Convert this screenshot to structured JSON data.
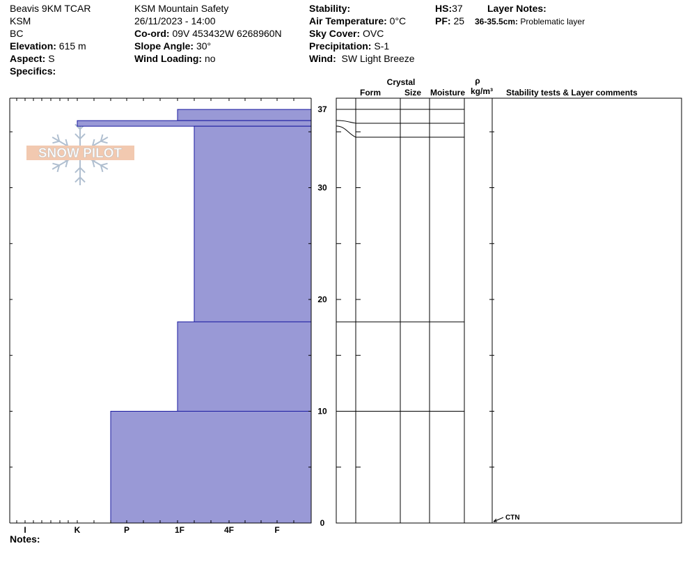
{
  "header": {
    "location": "Beavis 9KM TCAR",
    "range": "KSM",
    "state": "BC",
    "elevation_label": "Elevation:",
    "elevation_value": "615 m",
    "aspect_label": "Aspect:",
    "aspect_value": "S",
    "specifics_label": "Specifics:",
    "observer": "KSM Mountain Safety",
    "datetime": "26/11/2023 - 14:00",
    "coord_label": "Co-ord:",
    "coord_value": "09V 453432W 6268960N",
    "slope_label": "Slope Angle:",
    "slope_value": "30°",
    "windload_label": "Wind Loading:",
    "windload_value": "no",
    "stability_label": "Stability:",
    "stability_value": "",
    "airtemp_label": "Air Temperature:",
    "airtemp_value": "0°C",
    "sky_label": "Sky Cover:",
    "sky_value": "OVC",
    "precip_label": "Precipitation:",
    "precip_value": "S-1",
    "wind_label": "Wind:",
    "wind_value": "SW Light Breeze",
    "hs_label": "HS:",
    "hs_value": "37",
    "pf_label": "PF:",
    "pf_value": "25",
    "layer_notes_label": "Layer Notes:",
    "layer_note_range": "36-35.5cm:",
    "layer_note_text": "Problematic layer",
    "notes_label": "Notes:"
  },
  "logo": {
    "text": "SNOW PILOT"
  },
  "columns": {
    "crystal": "Crystal",
    "form": "Form",
    "size": "Size",
    "moisture": "Moisture",
    "rho": "ρ",
    "density_unit": "kg/m³",
    "comments": "Stability tests & Layer comments"
  },
  "tests": [
    {
      "label": "CTN",
      "height_cm": 0
    }
  ],
  "colors": {
    "fill": "#9999d6",
    "line": "#1a1aa0",
    "frame": "#000000"
  },
  "chart_data": {
    "type": "area",
    "xlabel": "",
    "ylabel": "",
    "x_categories": [
      "I",
      "K",
      "P",
      "1F",
      "4F",
      "F"
    ],
    "y_ticks": [
      0,
      10,
      20,
      30,
      37
    ],
    "ylim": [
      0,
      37.5
    ],
    "hardness_index_scale": {
      "F": 1,
      "4F": 2,
      "1F": 3,
      "P": 4,
      "K": 5,
      "I": 6
    },
    "layers": [
      {
        "top": 37,
        "bottom": 36,
        "hardness": "1F-"
      },
      {
        "top": 36,
        "bottom": 35.5,
        "hardness": "K"
      },
      {
        "top": 35.5,
        "bottom": 18,
        "hardness": "1F-/4F+"
      },
      {
        "top": 18,
        "bottom": 10,
        "hardness": "1F-"
      },
      {
        "top": 10,
        "bottom": 0,
        "hardness": "P+"
      }
    ],
    "layer_boundaries": [
      37,
      36,
      35.5,
      18,
      10,
      0
    ]
  }
}
